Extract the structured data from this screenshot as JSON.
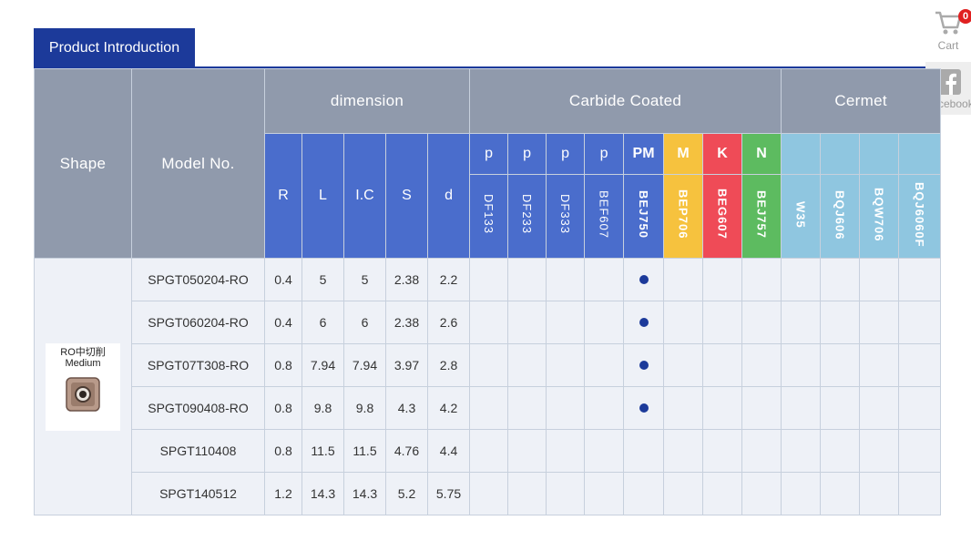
{
  "tab": {
    "label": "Product Introduction"
  },
  "sidebar": {
    "cart": {
      "label": "Cart",
      "badge": "0",
      "icon": "cart-icon"
    },
    "facebook": {
      "label": "Facebook",
      "icon": "facebook-icon"
    }
  },
  "table": {
    "headers": {
      "shape": "Shape",
      "model": "Model No.",
      "dimension": "dimension",
      "carbide": "Carbide Coated",
      "cermet": "Cermet",
      "dims": [
        "R",
        "L",
        "I.C",
        "S",
        "d"
      ],
      "carbide_groups": [
        "p",
        "p",
        "p",
        "p",
        "PM",
        "M",
        "K",
        "N"
      ],
      "carbide_grades": [
        "DF133",
        "DF233",
        "DF333",
        "BEF607",
        "BEJ750",
        "BEP706",
        "BEG607",
        "BEJ757"
      ],
      "cermet_grades": [
        "W35",
        "BQJ606",
        "BQW706",
        "BQJ6060F"
      ]
    },
    "shape_caption_line1": "RO中切削",
    "shape_caption_line2": "Medium",
    "rows": [
      {
        "model": "SPGT050204-RO",
        "R": "0.4",
        "L": "5",
        "IC": "5",
        "S": "2.38",
        "d": "2.2"
      },
      {
        "model": "SPGT060204-RO",
        "R": "0.4",
        "L": "6",
        "IC": "6",
        "S": "2.38",
        "d": "2.6"
      },
      {
        "model": "SPGT07T308-RO",
        "R": "0.8",
        "L": "7.94",
        "IC": "7.94",
        "S": "3.97",
        "d": "2.8"
      },
      {
        "model": "SPGT090408-RO",
        "R": "0.8",
        "L": "9.8",
        "IC": "9.8",
        "S": "4.3",
        "d": "4.2"
      },
      {
        "model": "SPGT110408",
        "R": "0.8",
        "L": "11.5",
        "IC": "11.5",
        "S": "4.76",
        "d": "4.4"
      },
      {
        "model": "SPGT140512",
        "R": "1.2",
        "L": "14.3",
        "IC": "14.3",
        "S": "5.2",
        "d": "5.75"
      }
    ],
    "colors": {
      "brand": "#1c3a9a",
      "header_gray": "#909aac",
      "header_blue": "#4a6dcc",
      "M": "#f6c23e",
      "K": "#ef4b57",
      "N": "#5dbb60",
      "cermet": "#8fc6e0"
    }
  }
}
